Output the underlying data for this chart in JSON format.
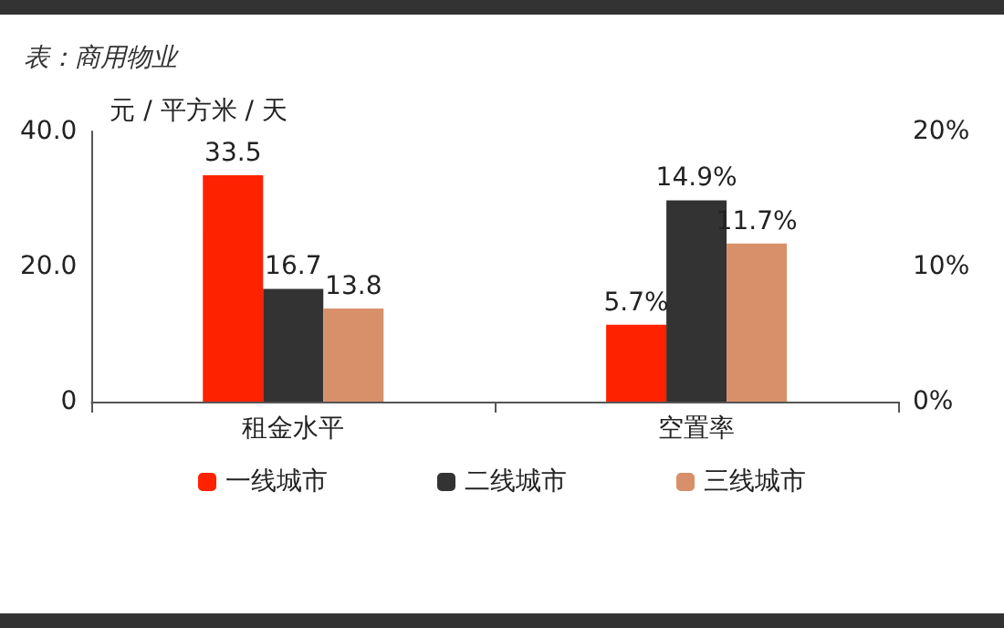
{
  "chart_data": {
    "type": "bar",
    "title": "表：商用物业",
    "ylabel": "元 / 平方米 / 天",
    "categories": [
      "租金水平",
      "空置率"
    ],
    "series": [
      {
        "name": "一线城市",
        "color": "#ff2200",
        "values": [
          33.5,
          null
        ],
        "value_labels": [
          "33.5",
          null
        ]
      },
      {
        "name": "二线城市",
        "color": "#333333",
        "values": [
          16.7,
          null
        ],
        "value_labels": [
          "16.7",
          null
        ]
      },
      {
        "name": "三线城市",
        "color": "#d8906a",
        "values": [
          13.8,
          null
        ],
        "value_labels": [
          "13.8",
          null
        ]
      },
      {
        "color": "#ff2200",
        "axis": "y2",
        "values": [
          null,
          5.7
        ],
        "value_labels": [
          null,
          "5.7%"
        ]
      },
      {
        "color": "#333333",
        "axis": "y2",
        "values": [
          null,
          14.9
        ],
        "value_labels": [
          null,
          "14.9%"
        ]
      },
      {
        "color": "#d8906a",
        "axis": "y2",
        "values": [
          null,
          11.7
        ],
        "value_labels": [
          null,
          "11.7%"
        ]
      }
    ],
    "ylim": [
      0,
      40
    ],
    "yticks": [
      {
        "value": 0,
        "label": "0"
      },
      {
        "value": 20,
        "label": "20.0"
      },
      {
        "value": 40,
        "label": "40.0"
      }
    ],
    "y2lim": [
      0,
      20
    ],
    "y2ticks": [
      {
        "value": 0,
        "label": "0%"
      },
      {
        "value": 10,
        "label": "10%"
      },
      {
        "value": 20,
        "label": "20%"
      }
    ],
    "legend": "bottom",
    "grid": false
  }
}
